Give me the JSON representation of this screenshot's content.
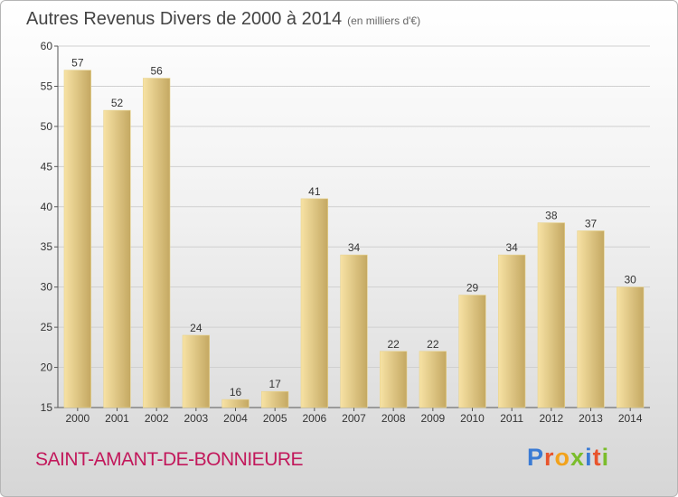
{
  "page": {
    "title": "Autres Revenus Divers de 2000 à 2014",
    "subtitle": "(en milliers d'€)",
    "commune": "SAINT-AMANT-DE-BONNIEURE",
    "brand": "Proxiti",
    "brand_colors": [
      "#3b7bd4",
      "#e8542c",
      "#f2a21b",
      "#7bbd2c",
      "#3b7bd4",
      "#e8542c",
      "#7bbd2c"
    ]
  },
  "chart_data": {
    "type": "bar",
    "title": "Autres Revenus Divers de 2000 à 2014",
    "subtitle": "(en milliers d'€)",
    "categories": [
      "2000",
      "2001",
      "2002",
      "2003",
      "2004",
      "2005",
      "2006",
      "2007",
      "2008",
      "2009",
      "2010",
      "2011",
      "2012",
      "2013",
      "2014"
    ],
    "values": [
      57,
      52,
      56,
      24,
      16,
      17,
      41,
      34,
      22,
      22,
      29,
      34,
      38,
      37,
      30
    ],
    "ylim": [
      15,
      60
    ],
    "yticks": [
      15,
      20,
      25,
      30,
      35,
      40,
      45,
      50,
      55,
      60
    ],
    "grid": true,
    "bar_color_light": "#f7e2a4",
    "bar_color_dark": "#c4a862",
    "value_labels": true
  }
}
